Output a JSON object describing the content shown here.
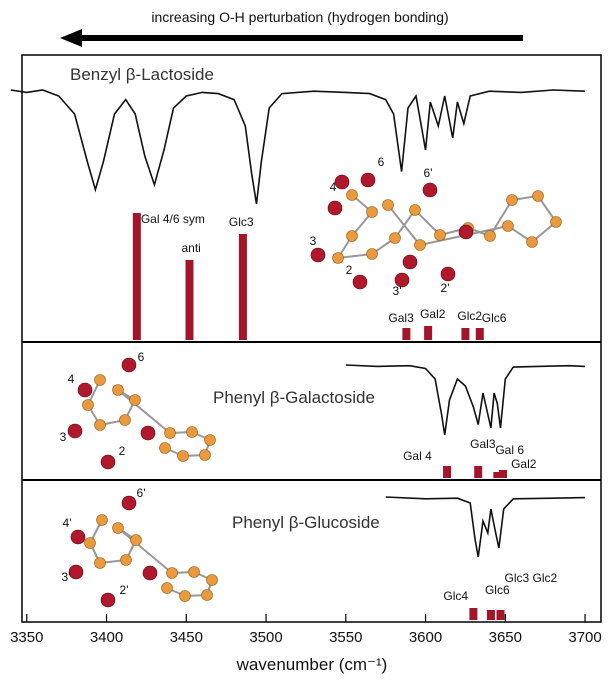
{
  "header": {
    "arrow_label": "increasing O-H perturbation (hydrogen bonding)"
  },
  "chart_data": [
    {
      "type": "spectrum",
      "title": "Benzyl β-Lactoside",
      "xlim": [
        3347,
        3710
      ],
      "ylim": [
        0,
        140
      ],
      "line_color": "#111111",
      "bar_color": "#a3162a",
      "spectrum": {
        "x": [
          3340,
          3350,
          3360,
          3370,
          3380,
          3388,
          3393,
          3398,
          3405,
          3412,
          3418,
          3424,
          3430,
          3436,
          3442,
          3450,
          3460,
          3470,
          3480,
          3487,
          3491,
          3494,
          3497,
          3502,
          3510,
          3530,
          3550,
          3565,
          3575,
          3580,
          3585,
          3589,
          3594,
          3598,
          3600,
          3603,
          3608,
          3612,
          3617,
          3620,
          3624,
          3628,
          3640,
          3660,
          3680,
          3700
        ],
        "values": [
          0,
          0.02,
          0,
          0.05,
          0.2,
          0.6,
          0.83,
          0.6,
          0.2,
          0.08,
          0.2,
          0.55,
          0.79,
          0.5,
          0.15,
          0.05,
          0.02,
          0.03,
          0.08,
          0.3,
          0.7,
          0.95,
          0.6,
          0.15,
          0.03,
          0.01,
          0.02,
          0.03,
          0.08,
          0.2,
          0.68,
          0.15,
          0.05,
          0.35,
          0.5,
          0.1,
          0.3,
          0.05,
          0.4,
          0.1,
          0.28,
          0.05,
          0.01,
          0.02,
          0,
          0.01
        ]
      },
      "sticks": {
        "x": [
          3419,
          3452,
          3485.5,
          3588,
          3601.6,
          3625,
          3634
        ],
        "values": [
          127,
          80,
          106,
          12,
          14,
          12,
          12
        ],
        "labels": [
          "Gal 4/6 sym",
          "anti",
          "Glc3",
          "Gal3",
          "Gal2",
          "Glc2",
          "Glc6"
        ]
      },
      "structure_labels": [
        "6",
        "6'",
        "4",
        "3",
        "2",
        "3'",
        "2'"
      ]
    },
    {
      "type": "spectrum",
      "title": "Phenyl β-Galactoside",
      "xlim": [
        3347,
        3710
      ],
      "ylim": [
        0,
        140
      ],
      "line_color": "#111111",
      "bar_color": "#a3162a",
      "spectrum": {
        "x": [
          3550,
          3570,
          3590,
          3600,
          3606,
          3610,
          3612,
          3615,
          3620,
          3625,
          3630,
          3633,
          3636,
          3638,
          3641,
          3643,
          3645,
          3647,
          3650,
          3655,
          3670,
          3690,
          3700
        ],
        "values": [
          0,
          0.02,
          0.01,
          0.05,
          0.2,
          0.7,
          1.0,
          0.5,
          0.2,
          0.3,
          0.6,
          0.85,
          0.4,
          0.6,
          0.9,
          0.4,
          0.55,
          0.9,
          0.2,
          0.03,
          0.02,
          0.01,
          0.02
        ]
      },
      "sticks": {
        "x": [
          3613.5,
          3633,
          3645,
          3648.6
        ],
        "values": [
          12,
          12,
          6,
          8
        ],
        "labels": [
          "Gal 4",
          "Gal3",
          "Gal 6",
          "Gal2"
        ]
      },
      "structure_labels": [
        "6",
        "4",
        "3",
        "2"
      ]
    },
    {
      "type": "spectrum",
      "title": "Phenyl β-Glucoside",
      "xlim": [
        3347,
        3710
      ],
      "ylim": [
        0,
        140
      ],
      "line_color": "#111111",
      "bar_color": "#a3162a",
      "spectrum": {
        "x": [
          3575,
          3600,
          3620,
          3628,
          3631,
          3633,
          3636,
          3639,
          3641,
          3644,
          3646,
          3649,
          3655,
          3680,
          3700
        ],
        "values": [
          0,
          0.03,
          0.02,
          0.1,
          0.7,
          1.0,
          0.4,
          0.6,
          0.2,
          0.6,
          0.85,
          0.2,
          0.03,
          0.02,
          0.01
        ]
      },
      "sticks": {
        "x": [
          3630,
          3641,
          3647
        ],
        "values": [
          12,
          10,
          10
        ],
        "labels": [
          "Glc4",
          "Glc6",
          "Glc3 Glc2"
        ]
      },
      "structure_labels": [
        "6'",
        "4'",
        "3'",
        "2'"
      ],
      "xticks": [
        3350,
        3400,
        3450,
        3500,
        3550,
        3600,
        3650,
        3700
      ],
      "x_label": "wavenumber (cm⁻¹)"
    }
  ]
}
